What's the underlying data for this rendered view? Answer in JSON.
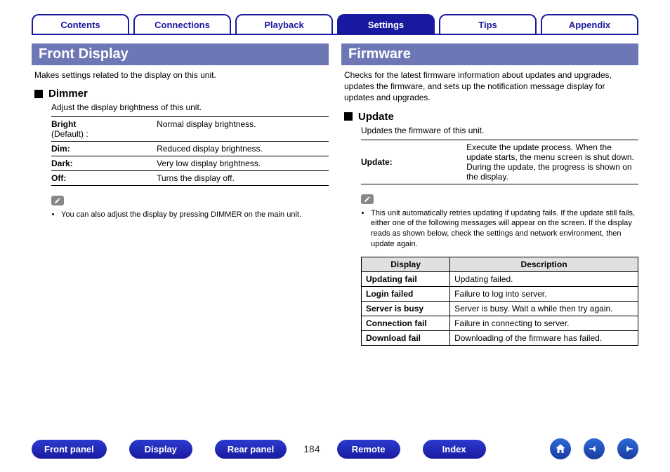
{
  "tabs": [
    {
      "label": "Contents",
      "active": false
    },
    {
      "label": "Connections",
      "active": false
    },
    {
      "label": "Playback",
      "active": false
    },
    {
      "label": "Settings",
      "active": true
    },
    {
      "label": "Tips",
      "active": false
    },
    {
      "label": "Appendix",
      "active": false
    }
  ],
  "left": {
    "header": "Front Display",
    "intro": "Makes settings related to the display on this unit.",
    "sub": {
      "title": "Dimmer",
      "desc": "Adjust the display brightness of this unit.",
      "rows": [
        {
          "k": "Bright",
          "def": "(Default) :",
          "v": "Normal display brightness."
        },
        {
          "k": "Dim:",
          "def": "",
          "v": "Reduced display brightness."
        },
        {
          "k": "Dark:",
          "def": "",
          "v": "Very low display brightness."
        },
        {
          "k": "Off:",
          "def": "",
          "v": "Turns the display off."
        }
      ],
      "note": "You can also adjust the display by pressing DIMMER on the main unit."
    }
  },
  "right": {
    "header": "Firmware",
    "intro": "Checks for the latest firmware information about updates and upgrades, updates the firmware, and sets up the notification message display for updates and upgrades.",
    "sub": {
      "title": "Update",
      "desc": "Updates the firmware of this unit.",
      "rows": [
        {
          "k": "Update:",
          "v": "Execute the update process. When the update starts, the menu screen is shut down. During the update, the progress is shown on the display."
        }
      ],
      "note": "This unit automatically retries updating if updating fails. If the update still fails, either one of the following messages will appear on the screen. If the display reads as shown below, check the settings and network environment, then update again."
    },
    "errHead": {
      "c1": "Display",
      "c2": "Description"
    },
    "errRows": [
      {
        "d": "Updating fail",
        "desc": "Updating failed."
      },
      {
        "d": "Login failed",
        "desc": "Failure to log into server."
      },
      {
        "d": "Server is busy",
        "desc": "Server is busy. Wait a while then try again."
      },
      {
        "d": "Connection fail",
        "desc": "Failure in connecting to server."
      },
      {
        "d": "Download fail",
        "desc": "Downloading of the firmware has failed."
      }
    ]
  },
  "footer": {
    "pills": [
      "Front panel",
      "Display",
      "Rear panel"
    ],
    "page": "184",
    "pills2": [
      "Remote",
      "Index"
    ]
  },
  "colors": {
    "brand": "#1a1aa0",
    "header_bg": "#6d77b6",
    "err_head_bg": "#e0e0e0"
  }
}
